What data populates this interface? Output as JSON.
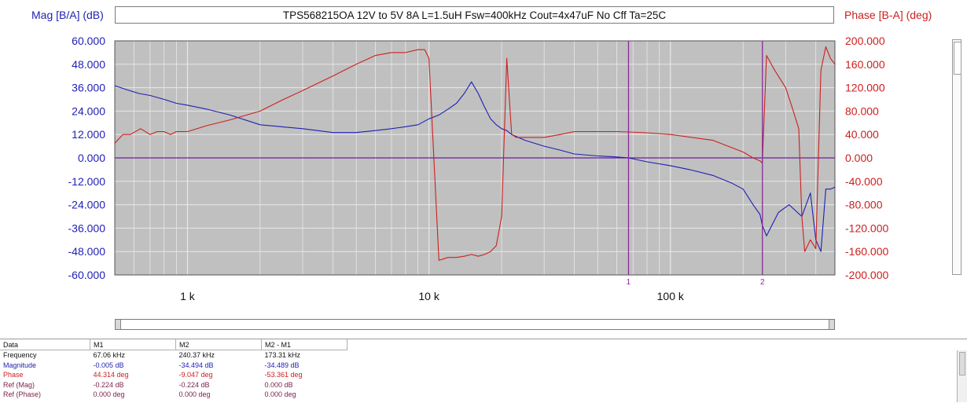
{
  "chart_data": {
    "type": "line",
    "title": "TPS568215OA  12V to 5V 8A  L=1.5uH  Fsw=400kHz  Cout=4x47uF  No Cff  Ta=25C",
    "ylabel": "Mag [B/A] (dB)",
    "y2label": "Phase [B-A] (deg)",
    "x_scale": "log",
    "xlim": [
      500,
      480000
    ],
    "ylim": [
      -60,
      60
    ],
    "y2lim": [
      -200,
      200
    ],
    "x_tick_labels": [
      "1 k",
      "10 k",
      "100 k"
    ],
    "x_tick_values": [
      1000,
      10000,
      100000
    ],
    "y_tick_labels": [
      "60.000",
      "48.000",
      "36.000",
      "24.000",
      "12.000",
      "0.000",
      "-12.000",
      "-24.000",
      "-36.000",
      "-48.000",
      "-60.000"
    ],
    "y2_tick_labels": [
      "200.000",
      "160.000",
      "120.000",
      "80.000",
      "40.000",
      "0.000",
      "-40.000",
      "-80.000",
      "-120.000",
      "-160.000",
      "-200.000"
    ],
    "grid": true,
    "colors": {
      "magnitude": "#1f1fb4",
      "phase": "#cc2020",
      "marker": "#8a2a9a",
      "zero_line": "#6a1fa0",
      "plot_bg": "#c0c0c0",
      "grid": "#e8e8e8"
    },
    "series": [
      {
        "name": "Magnitude",
        "axis": "left",
        "x": [
          500,
          560,
          630,
          700,
          800,
          900,
          1000,
          1200,
          1500,
          2000,
          3000,
          4000,
          5000,
          6000,
          7000,
          8000,
          9000,
          10000,
          11000,
          12000,
          13000,
          14000,
          15000,
          16000,
          17000,
          18000,
          19000,
          20000,
          21000,
          22000,
          23000,
          25000,
          30000,
          35000,
          40000,
          50000,
          60000,
          67060,
          80000,
          100000,
          120000,
          150000,
          180000,
          200000,
          220000,
          235000,
          240370,
          250000,
          280000,
          310000,
          350000,
          380000,
          400000,
          420000,
          440000,
          460000,
          480000
        ],
        "y": [
          37,
          35,
          33,
          32,
          30,
          28,
          27,
          25,
          22,
          17,
          15,
          13,
          13,
          14,
          15,
          16,
          17,
          20,
          22,
          25,
          28,
          33,
          39,
          33,
          26,
          20,
          17,
          15,
          14,
          12,
          11,
          9,
          6,
          4,
          2,
          1,
          0.5,
          -0.005,
          -2,
          -4,
          -6,
          -9,
          -13,
          -16,
          -24,
          -29,
          -34.494,
          -40,
          -28,
          -24,
          -30,
          -18,
          -42,
          -48,
          -16,
          -16,
          -15
        ]
      },
      {
        "name": "Phase",
        "axis": "right",
        "x": [
          500,
          540,
          580,
          640,
          700,
          750,
          800,
          850,
          900,
          1000,
          1200,
          1500,
          2000,
          2500,
          3000,
          4000,
          5000,
          6000,
          7000,
          8000,
          9000,
          9600,
          10000,
          11000,
          12000,
          13000,
          14000,
          15000,
          16000,
          17000,
          18000,
          19000,
          20000,
          21000,
          22000,
          23000,
          25000,
          30000,
          35000,
          40000,
          50000,
          60000,
          67060,
          80000,
          100000,
          150000,
          200000,
          220000,
          235000,
          240370,
          250000,
          270000,
          300000,
          320000,
          340000,
          350000,
          360000,
          380000,
          400000,
          420000,
          440000,
          460000,
          480000
        ],
        "y": [
          25,
          40,
          40,
          50,
          40,
          45,
          45,
          40,
          45,
          45,
          55,
          65,
          80,
          100,
          115,
          140,
          160,
          175,
          180,
          180,
          185,
          185,
          170,
          -175,
          -170,
          -170,
          -168,
          -165,
          -168,
          -165,
          -160,
          -150,
          -100,
          170,
          40,
          35,
          35,
          35,
          40,
          45,
          45,
          45,
          44.314,
          43,
          40,
          30,
          10,
          0,
          -5,
          -9.047,
          175,
          150,
          120,
          85,
          50,
          -100,
          -160,
          -140,
          -155,
          150,
          190,
          170,
          160
        ]
      }
    ],
    "markers": [
      {
        "label": "1",
        "x": 67060
      },
      {
        "label": "2",
        "x": 240370
      }
    ]
  },
  "table": {
    "headers": [
      "Data",
      "M1",
      "M2",
      "M2 - M1"
    ],
    "rows": [
      {
        "label": "Frequency",
        "values": [
          "67.06 kHz",
          "240.37 kHz",
          "173.31 kHz"
        ]
      },
      {
        "label": "Magnitude",
        "values": [
          "-0.005 dB",
          "-34.494 dB",
          "-34.489 dB"
        ]
      },
      {
        "label": "Phase",
        "values": [
          "44.314 deg",
          "-9.047 deg",
          "-53.361 deg"
        ]
      },
      {
        "label": "Ref (Mag)",
        "values": [
          "-0.224 dB",
          "-0.224 dB",
          "0.000 dB"
        ]
      },
      {
        "label": "Ref (Phase)",
        "values": [
          "0.000 deg",
          "0.000 deg",
          "0.000 deg"
        ]
      }
    ]
  }
}
